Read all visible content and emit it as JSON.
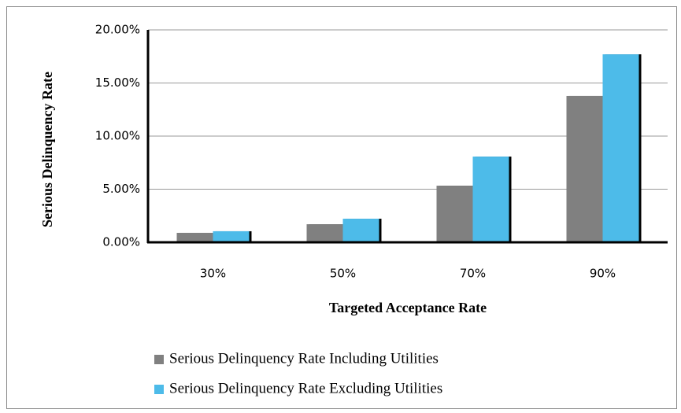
{
  "chart_data": {
    "type": "bar",
    "categories": [
      "30%",
      "50%",
      "70%",
      "90%"
    ],
    "x_label": "Targeted Acceptance Rate",
    "y_label": "Serious Delinquency Rate",
    "series": [
      {
        "name": "Serious Delinquency Rate Including Utilities",
        "color": "#808080",
        "values": [
          0.89,
          1.7,
          5.33,
          13.78
        ]
      },
      {
        "name": "Serious Delinquency Rate Excluding Utilities",
        "color": "#4dbbe9",
        "values": [
          1.04,
          2.22,
          8.07,
          17.7
        ]
      }
    ],
    "ylim": [
      0,
      20
    ],
    "yticks": [
      {
        "value": 0,
        "label": "0.00%"
      },
      {
        "value": 5,
        "label": "5.00%"
      },
      {
        "value": 10,
        "label": "10.00%"
      },
      {
        "value": 15,
        "label": "15.00%"
      },
      {
        "value": 20,
        "label": "20.00%"
      }
    ],
    "grid": true,
    "legend": "bottom"
  }
}
